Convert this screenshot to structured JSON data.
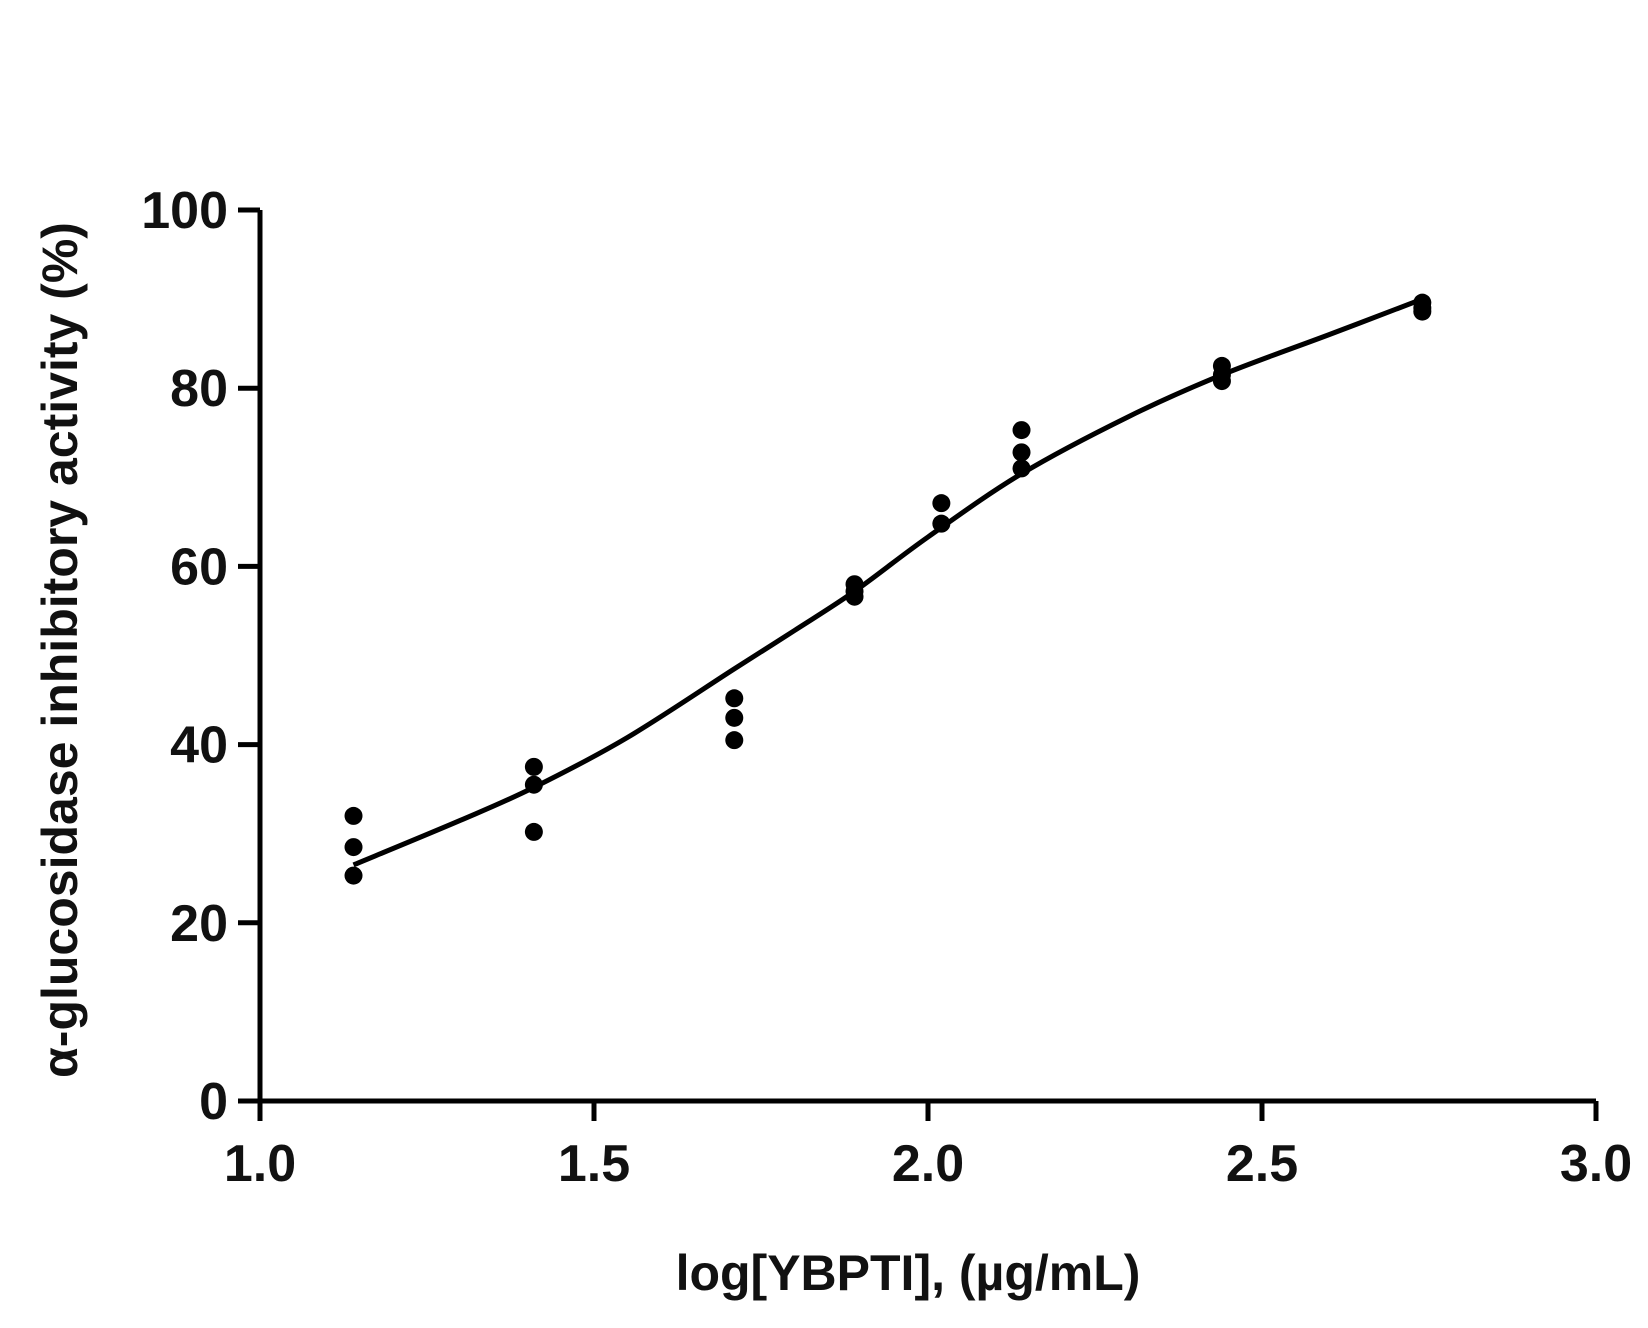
{
  "chart_data": {
    "type": "scatter",
    "title": "",
    "xlabel": "log[YBPTI], (µg/mL)",
    "ylabel": "α-glucosidase inhibitory activity (%)",
    "xlim": [
      1.0,
      3.0
    ],
    "ylim": [
      0,
      100
    ],
    "x_ticks": [
      1.0,
      1.5,
      2.0,
      2.5,
      3.0
    ],
    "x_tick_labels": [
      "1.0",
      "1.5",
      "2.0",
      "2.5",
      "3.0"
    ],
    "y_ticks": [
      0,
      20,
      40,
      60,
      80,
      100
    ],
    "y_tick_labels": [
      "0",
      "20",
      "40",
      "60",
      "80",
      "100"
    ],
    "grid": false,
    "series": [
      {
        "points": [
          {
            "x": 1.14,
            "y": 32.0
          },
          {
            "x": 1.14,
            "y": 28.5
          },
          {
            "x": 1.14,
            "y": 25.3
          },
          {
            "x": 1.41,
            "y": 37.5
          },
          {
            "x": 1.41,
            "y": 35.5
          },
          {
            "x": 1.41,
            "y": 30.2
          },
          {
            "x": 1.71,
            "y": 45.2
          },
          {
            "x": 1.71,
            "y": 43.0
          },
          {
            "x": 1.71,
            "y": 40.5
          },
          {
            "x": 1.89,
            "y": 58.0
          },
          {
            "x": 1.89,
            "y": 57.2
          },
          {
            "x": 1.89,
            "y": 56.6
          },
          {
            "x": 2.02,
            "y": 67.1
          },
          {
            "x": 2.02,
            "y": 64.8
          },
          {
            "x": 2.14,
            "y": 75.3
          },
          {
            "x": 2.14,
            "y": 72.8
          },
          {
            "x": 2.14,
            "y": 71.0
          },
          {
            "x": 2.44,
            "y": 82.5
          },
          {
            "x": 2.44,
            "y": 81.5
          },
          {
            "x": 2.44,
            "y": 80.8
          },
          {
            "x": 2.74,
            "y": 89.6
          },
          {
            "x": 2.74,
            "y": 89.0
          },
          {
            "x": 2.74,
            "y": 88.6
          }
        ]
      },
      {
        "type": "line",
        "x": [
          1.14,
          1.3,
          1.41,
          1.55,
          1.71,
          1.8,
          1.89,
          2.0,
          2.14,
          2.3,
          2.44,
          2.6,
          2.74
        ],
        "y": [
          26.5,
          31.5,
          35.2,
          40.8,
          48.5,
          52.8,
          57.2,
          63.3,
          70.4,
          76.8,
          81.5,
          86.0,
          90.0
        ]
      }
    ]
  }
}
